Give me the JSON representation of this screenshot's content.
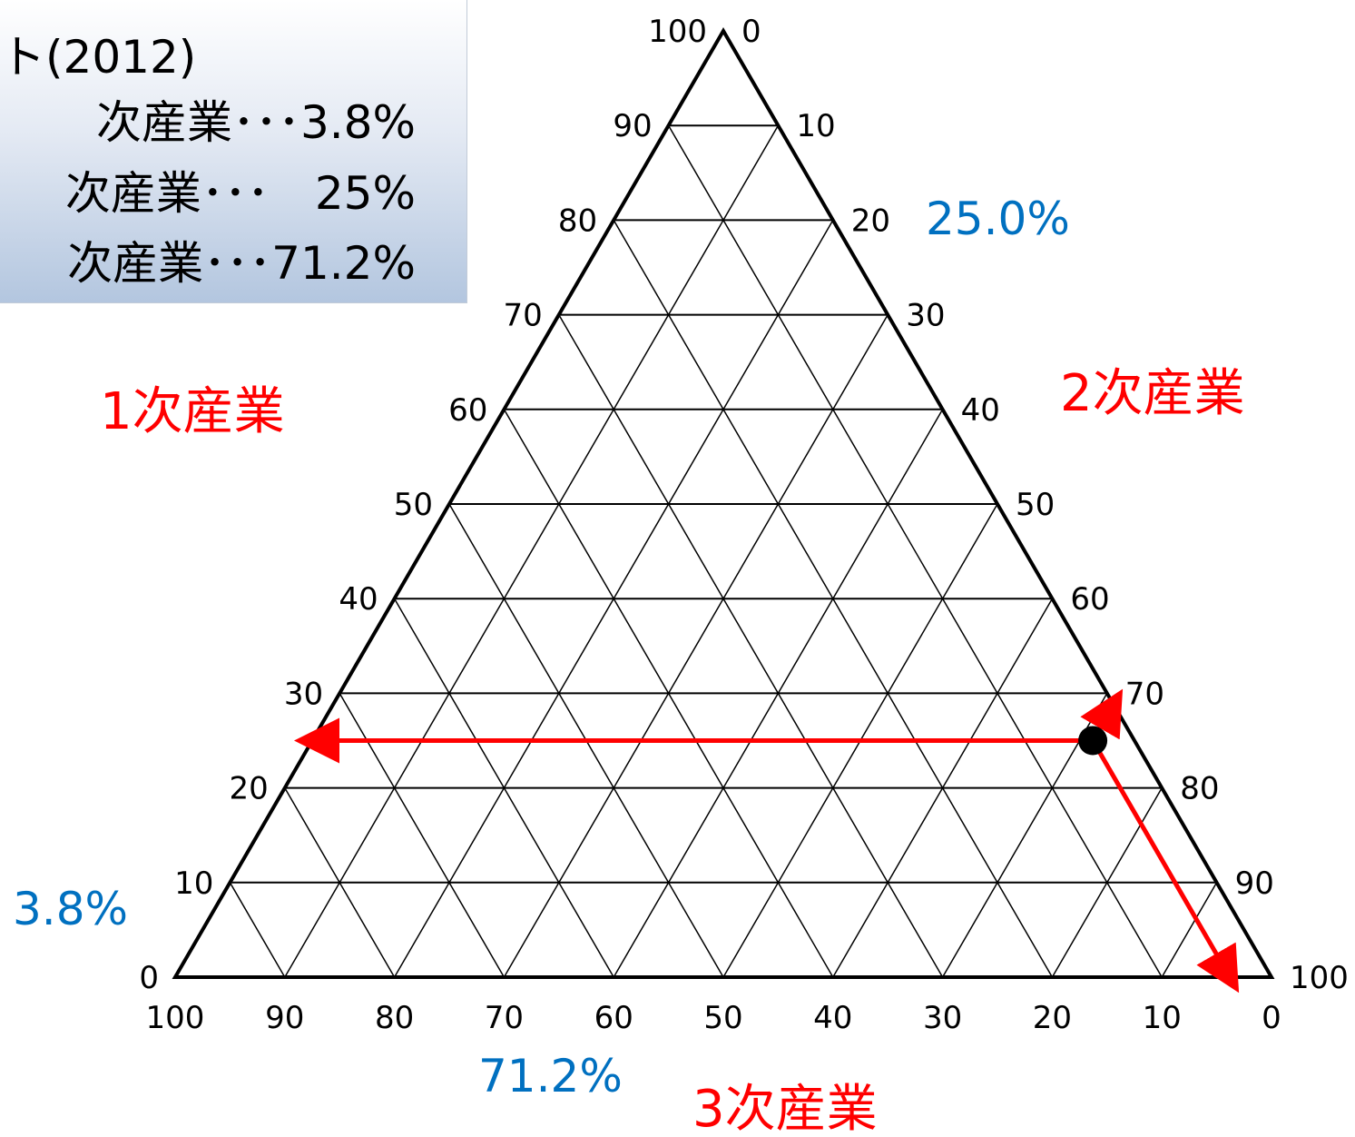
{
  "legend": {
    "title": "ト(2012)",
    "lines": [
      "次産業･･･3.8%",
      "次産業･･･　25%",
      "次産業･･･71.2%"
    ]
  },
  "colors": {
    "axis_title": "#ff0000",
    "value_label": "#0070c0",
    "arrow": "#ff0000",
    "point": "#000000",
    "grid": "#000000"
  },
  "chart_data": {
    "type": "ternary",
    "axes": {
      "primary": {
        "title": "1次産業",
        "ticks": [
          0,
          10,
          20,
          30,
          40,
          50,
          60,
          70,
          80,
          90,
          100
        ]
      },
      "secondary": {
        "title": "2次産業",
        "ticks": [
          0,
          10,
          20,
          30,
          40,
          50,
          60,
          70,
          80,
          90,
          100
        ]
      },
      "tertiary": {
        "title": "3次産業",
        "ticks": [
          100,
          90,
          80,
          70,
          60,
          50,
          40,
          30,
          20,
          10,
          0
        ]
      }
    },
    "grid": true,
    "grid_step": 10,
    "point": {
      "primary": 3.8,
      "secondary": 25.0,
      "tertiary": 71.2
    },
    "value_labels": {
      "primary": "3.8%",
      "secondary": "25.0%",
      "tertiary": "71.2%"
    }
  }
}
